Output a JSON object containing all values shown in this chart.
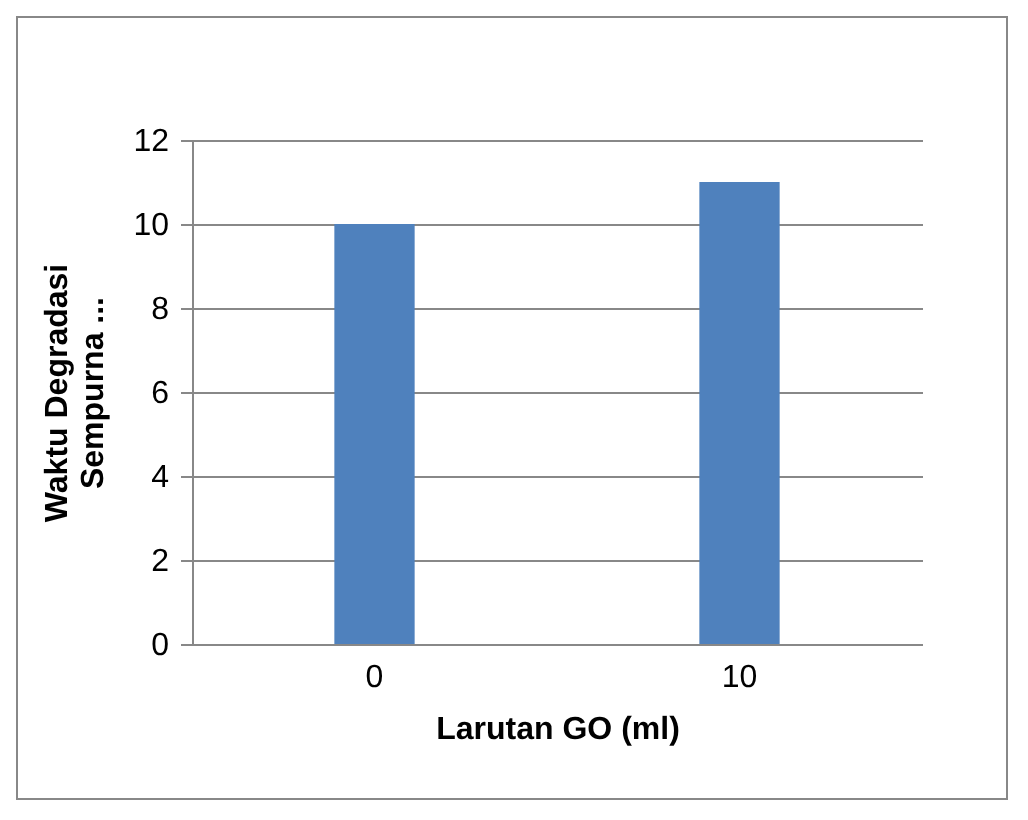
{
  "chart_data": {
    "type": "bar",
    "xlabel": "Larutan GO (ml)",
    "ylabel": "Waktu Degradasi Sempurna ...",
    "categories": [
      "0",
      "10"
    ],
    "values": [
      10,
      11
    ],
    "color": "#4f81bd",
    "ylim": [
      0,
      12
    ],
    "yticks": [
      0,
      2,
      4,
      6,
      8,
      10,
      12
    ],
    "grid": "y"
  }
}
